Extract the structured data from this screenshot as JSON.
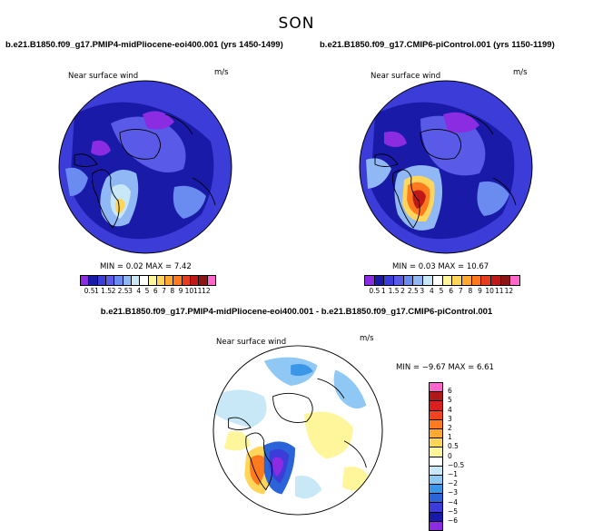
{
  "figure": {
    "title": "SON"
  },
  "panels": [
    {
      "title": "b.e21.B1850.f09_g17.PMIP4-midPliocene-eoi400.001 (yrs 1450-1499)",
      "variable": "Near surface wind",
      "units": "m/s",
      "min_max": "MIN =    0.02 MAX =    7.42"
    },
    {
      "title": "b.e21.B1850.f09_g17.CMIP6-piControl.001 (yrs 1150-1199)",
      "variable": "Near surface wind",
      "units": "m/s",
      "min_max": "MIN =    0.03 MAX =  10.67"
    },
    {
      "title": "b.e21.B1850.f09_g17.PMIP4-midPliocene-eoi400.001 - b.e21.B1850.f09_g17.CMIP6-piControl.001",
      "variable": "Near surface wind",
      "units": "m/s",
      "min_max": "MIN =  −9.67 MAX =    6.61"
    }
  ],
  "colorbar_abs": {
    "labels": [
      "0.5",
      "1",
      "1.5",
      "2",
      "2.5",
      "3",
      "4",
      "5",
      "6",
      "7",
      "8",
      "9",
      "10",
      "11",
      "12"
    ],
    "colors": [
      "#8b2be2",
      "#1a1aa8",
      "#3c3cd8",
      "#5a5ae8",
      "#6a8cf0",
      "#8fb8f5",
      "#c8e8f8",
      "#ffffff",
      "#fff59a",
      "#ffd65a",
      "#ffa832",
      "#ff7a1e",
      "#e83c1e",
      "#c01818",
      "#8c1414",
      "#ff66cc"
    ]
  },
  "colorbar_diff": {
    "labels": [
      "6",
      "5",
      "4",
      "3",
      "2",
      "1",
      "0.5",
      "0",
      "−0.5",
      "−1",
      "−2",
      "−3",
      "−4",
      "−5",
      "−6"
    ],
    "colors": [
      "#ff66cc",
      "#b01818",
      "#d82020",
      "#f04420",
      "#ff7a1e",
      "#ffa832",
      "#ffd65a",
      "#fff59a",
      "#ffffff",
      "#c8e8f8",
      "#8fc8f5",
      "#3c96e8",
      "#2a64d8",
      "#3c3cd8",
      "#1a1aa8",
      "#8b2be2"
    ]
  }
}
